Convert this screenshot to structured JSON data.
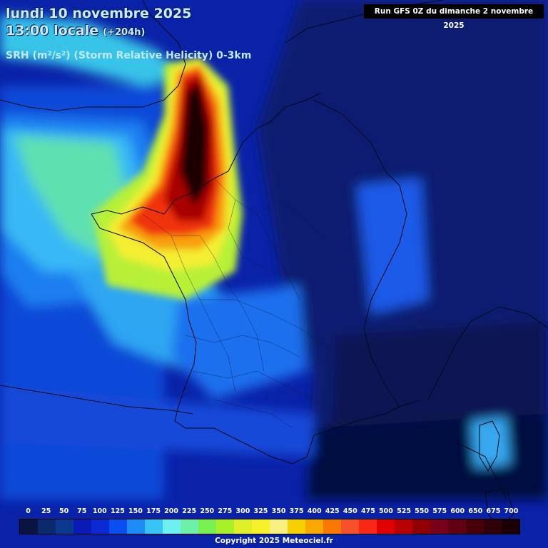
{
  "header": {
    "date_line": "lundi 10 novembre 2025",
    "time_line": "13:00 locale",
    "lead_time": "(+204h)",
    "parameter": "SRH (m²/s²) (Storm Relative Helicity) 0-3km",
    "run_info": "Run GFS 0Z du dimanche 2 novembre 2025"
  },
  "legend": {
    "labels": [
      "0",
      "25",
      "50",
      "75",
      "100",
      "125",
      "150",
      "175",
      "200",
      "225",
      "250",
      "275",
      "300",
      "325",
      "350",
      "375",
      "400",
      "425",
      "450",
      "475",
      "500",
      "525",
      "550",
      "575",
      "600",
      "650",
      "675",
      "700"
    ],
    "colors": [
      "#0a1440",
      "#0a2a6e",
      "#0a3a8f",
      "#0a1ab5",
      "#0a2ad5",
      "#0a4ef0",
      "#1e8cf5",
      "#37c4f5",
      "#6ef0f0",
      "#6ef0a8",
      "#78f050",
      "#a8f028",
      "#e0f028",
      "#f8f028",
      "#f8f080",
      "#f8d000",
      "#f8a800",
      "#f87800",
      "#f85028",
      "#f82814",
      "#e00000",
      "#b80000",
      "#900000",
      "#780018",
      "#600010",
      "#480008",
      "#300008",
      "#1a0004"
    ]
  },
  "map": {
    "description_colors": {
      "deep_ocean": "#05113a",
      "ocean_blue": "#0a2ab8",
      "mid_blue": "#1e64f0",
      "cyan": "#37c4f5"
    }
  },
  "footer": {
    "copyright": "Copyright 2025 Meteociel.fr"
  }
}
